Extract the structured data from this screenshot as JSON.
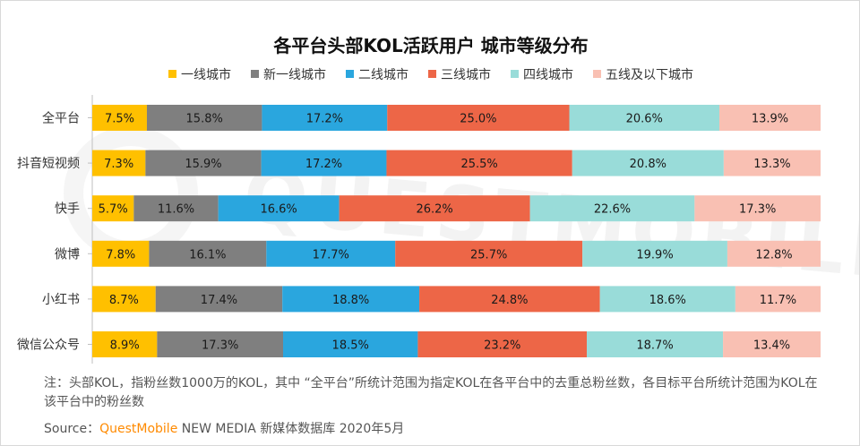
{
  "chart_data": {
    "type": "bar",
    "orientation": "horizontal",
    "stacked": "100%",
    "title": "各平台头部KOL活跃用户 城市等级分布",
    "categories": [
      "全平台",
      "抖音短视频",
      "快手",
      "微博",
      "小红书",
      "微信公众号"
    ],
    "series": [
      {
        "name": "一线城市",
        "color": "#ffc000",
        "values": [
          7.5,
          7.3,
          5.7,
          7.8,
          8.7,
          8.9
        ],
        "labels": [
          "7.5%",
          "7.3%",
          "5.7%",
          "7.8%",
          "8.7%",
          "8.9%"
        ]
      },
      {
        "name": "新一线城市",
        "color": "#7f7f7f",
        "values": [
          15.8,
          15.9,
          11.6,
          16.1,
          17.4,
          17.3
        ],
        "labels": [
          "15.8%",
          "15.9%",
          "11.6%",
          "16.1%",
          "17.4%",
          "17.3%"
        ]
      },
      {
        "name": "二线城市",
        "color": "#2aa6de",
        "values": [
          17.2,
          17.2,
          16.6,
          17.7,
          18.8,
          18.5
        ],
        "labels": [
          "17.2%",
          "17.2%",
          "16.6%",
          "17.7%",
          "18.8%",
          "18.5%"
        ]
      },
      {
        "name": "三线城市",
        "color": "#ed6647",
        "values": [
          25.0,
          25.5,
          26.2,
          25.7,
          24.8,
          23.2
        ],
        "labels": [
          "25.0%",
          "25.5%",
          "26.2%",
          "25.7%",
          "24.8%",
          "23.2%"
        ]
      },
      {
        "name": "四线城市",
        "color": "#99dcd9",
        "values": [
          20.6,
          20.8,
          22.6,
          19.9,
          18.6,
          18.7
        ],
        "labels": [
          "20.6%",
          "20.8%",
          "22.6%",
          "19.9%",
          "18.6%",
          "18.7%"
        ]
      },
      {
        "name": "五线及以下城市",
        "color": "#f9c0b3",
        "values": [
          13.9,
          13.3,
          17.3,
          12.8,
          11.7,
          13.4
        ],
        "labels": [
          "13.9%",
          "13.3%",
          "17.3%",
          "12.8%",
          "11.7%",
          "13.4%"
        ]
      }
    ],
    "xlabel": "",
    "ylabel": "",
    "legend_position": "top",
    "grid": false
  },
  "footnote": {
    "note": "注：头部KOL，指粉丝数1000万的KOL，其中 “全平台”所统计范围为指定KOL在各平台中的去重总粉丝数，各目标平台所统计范围为KOL在该平台中的粉丝数",
    "source_prefix": "Source：",
    "source_brand": "QuestMobile",
    "source_suffix": "NEW MEDIA 新媒体数据库 2020年5月"
  },
  "watermark": "QUESTMOBILE"
}
